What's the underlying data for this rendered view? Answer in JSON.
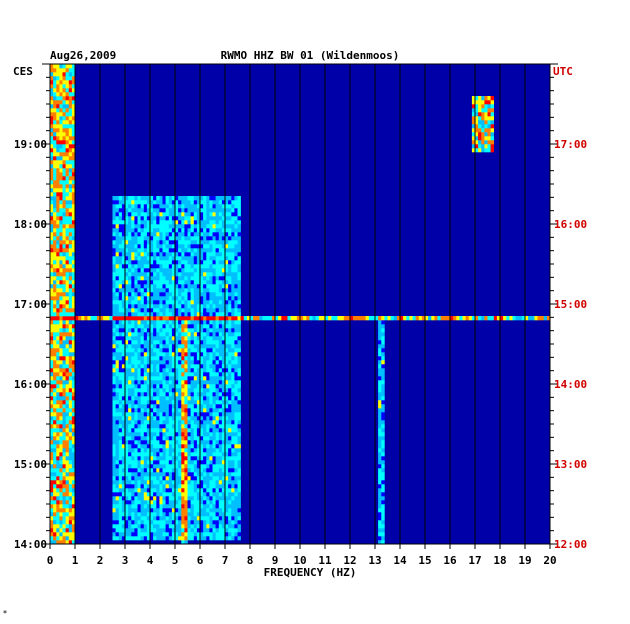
{
  "chart_data": {
    "type": "heatmap",
    "date": "Aug26,2009",
    "title": "RWMO HHZ BW 01 (Wildenmoos)",
    "left_axis_label": "CES",
    "right_axis_label": "UTC",
    "xlabel": "FREQUENCY (HZ)",
    "x_ticks": [
      "0",
      "1",
      "2",
      "3",
      "4",
      "5",
      "6",
      "7",
      "8",
      "9",
      "10",
      "11",
      "12",
      "13",
      "14",
      "15",
      "16",
      "17",
      "18",
      "19",
      "20"
    ],
    "xlim": [
      0,
      20
    ],
    "left_time_ticks": [
      "19:00",
      "18:00",
      "17:00",
      "16:00",
      "15:00",
      "14:00"
    ],
    "right_time_ticks": [
      "17:00",
      "16:00",
      "15:00",
      "14:00",
      "13:00",
      "12:00"
    ],
    "time_range_ces": [
      "14:00",
      "20:00"
    ],
    "colormap": [
      "#00008b",
      "#0000ff",
      "#00bfff",
      "#00ffff",
      "#ffff00",
      "#ff8000",
      "#ff0000"
    ],
    "features": [
      {
        "name": "microseism band",
        "freq": [
          0.1,
          0.9
        ],
        "intensity": "high",
        "time_ces": [
          "14:00",
          "20:00"
        ]
      },
      {
        "name": "anthropogenic band",
        "freq": [
          2.6,
          7.6
        ],
        "intensity": "medium",
        "time_ces": [
          "14:05",
          "18:20"
        ]
      },
      {
        "name": "spectral line",
        "freq": [
          5.3,
          5.3
        ],
        "intensity": "medium",
        "time_ces": [
          "14:00",
          "16:45"
        ]
      },
      {
        "name": "spectral line",
        "freq": [
          13.2,
          13.2
        ],
        "intensity": "medium",
        "time_ces": [
          "14:00",
          "16:45"
        ]
      },
      {
        "name": "broadband burst",
        "freq": [
          0,
          20
        ],
        "intensity": "high",
        "time_ces": [
          "16:50",
          "16:50"
        ]
      },
      {
        "name": "local event",
        "freq": [
          17.0,
          17.7
        ],
        "intensity": "high",
        "time_ces": [
          "18:55",
          "19:35"
        ]
      }
    ]
  },
  "footer_mark": "*"
}
